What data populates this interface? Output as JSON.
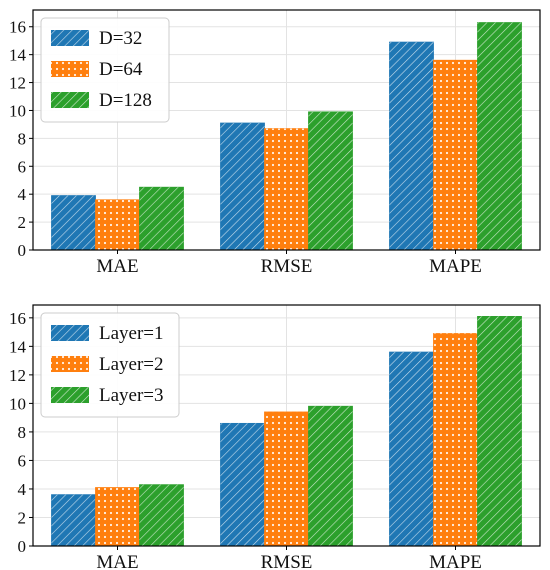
{
  "chart_data": [
    {
      "type": "bar",
      "categories": [
        "MAE",
        "RMSE",
        "MAPE"
      ],
      "series": [
        {
          "name": "D=32",
          "values": [
            3.9,
            9.1,
            14.9
          ],
          "color": "#1f77b4",
          "pattern": "hatch"
        },
        {
          "name": "D=64",
          "values": [
            3.6,
            8.7,
            13.6
          ],
          "color": "#ff7f0e",
          "pattern": "dots"
        },
        {
          "name": "D=128",
          "values": [
            4.5,
            9.9,
            16.3
          ],
          "color": "#2ca02c",
          "pattern": "hatch"
        }
      ],
      "yticks": [
        0,
        2,
        4,
        6,
        8,
        10,
        12,
        14,
        16
      ],
      "ylim": [
        0,
        17.2
      ],
      "grid": true,
      "legend_position": "top-left"
    },
    {
      "type": "bar",
      "categories": [
        "MAE",
        "RMSE",
        "MAPE"
      ],
      "series": [
        {
          "name": "Layer=1",
          "values": [
            3.6,
            8.6,
            13.6
          ],
          "color": "#1f77b4",
          "pattern": "hatch"
        },
        {
          "name": "Layer=2",
          "values": [
            4.1,
            9.4,
            14.9
          ],
          "color": "#ff7f0e",
          "pattern": "dots"
        },
        {
          "name": "Layer=3",
          "values": [
            4.3,
            9.8,
            16.1
          ],
          "color": "#2ca02c",
          "pattern": "hatch"
        }
      ],
      "yticks": [
        0,
        2,
        4,
        6,
        8,
        10,
        12,
        14,
        16
      ],
      "ylim": [
        0,
        16.9
      ],
      "grid": true,
      "legend_position": "top-left"
    }
  ]
}
